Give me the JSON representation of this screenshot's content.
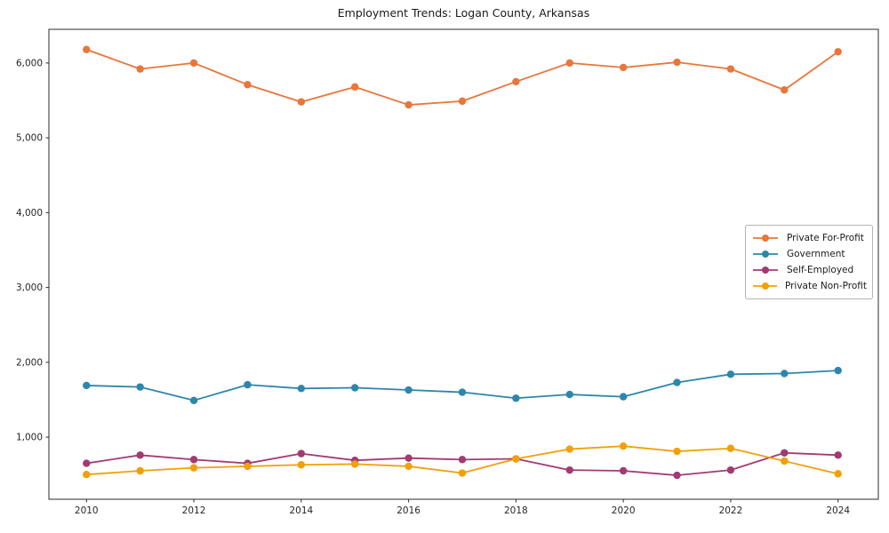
{
  "chart_data": {
    "type": "line",
    "title": "Employment Trends: Logan County, Arkansas",
    "xlabel": "",
    "ylabel": "",
    "x": [
      2010,
      2011,
      2012,
      2013,
      2014,
      2015,
      2016,
      2017,
      2018,
      2019,
      2020,
      2021,
      2022,
      2023,
      2024
    ],
    "series": [
      {
        "name": "Private For-Profit",
        "color": "#E8763B",
        "values": [
          6180,
          5920,
          6000,
          5710,
          5480,
          5680,
          5440,
          5490,
          5750,
          6000,
          5940,
          6010,
          5920,
          5640,
          6150
        ]
      },
      {
        "name": "Government",
        "color": "#2E86AB",
        "values": [
          1690,
          1670,
          1490,
          1700,
          1650,
          1660,
          1630,
          1600,
          1520,
          1570,
          1540,
          1730,
          1840,
          1850,
          1890
        ]
      },
      {
        "name": "Self-Employed",
        "color": "#A23B72",
        "values": [
          650,
          760,
          700,
          650,
          780,
          690,
          720,
          700,
          710,
          560,
          550,
          490,
          560,
          790,
          760
        ]
      },
      {
        "name": "Private Non-Profit",
        "color": "#F2A007",
        "values": [
          500,
          550,
          590,
          610,
          630,
          640,
          610,
          520,
          710,
          840,
          880,
          810,
          850,
          680,
          510
        ]
      }
    ],
    "xticks": [
      2010,
      2012,
      2014,
      2016,
      2018,
      2020,
      2022,
      2024
    ],
    "xtick_labels": [
      "2010",
      "2012",
      "2014",
      "2016",
      "2018",
      "2020",
      "2022",
      "2024"
    ],
    "yticks": [
      1000,
      2000,
      3000,
      4000,
      5000,
      6000
    ],
    "ytick_labels": [
      "1,000",
      "2,000",
      "3,000",
      "4,000",
      "5,000",
      "6,000"
    ],
    "xlim": [
      2009.3,
      2024.75
    ],
    "ylim": [
      170,
      6450
    ],
    "grid": false,
    "legend_position": "center-right",
    "marker": "circle",
    "line_width": 1.8,
    "marker_radius": 4.2,
    "spine_color": "#2b2b2b",
    "text_color": "#262626"
  }
}
